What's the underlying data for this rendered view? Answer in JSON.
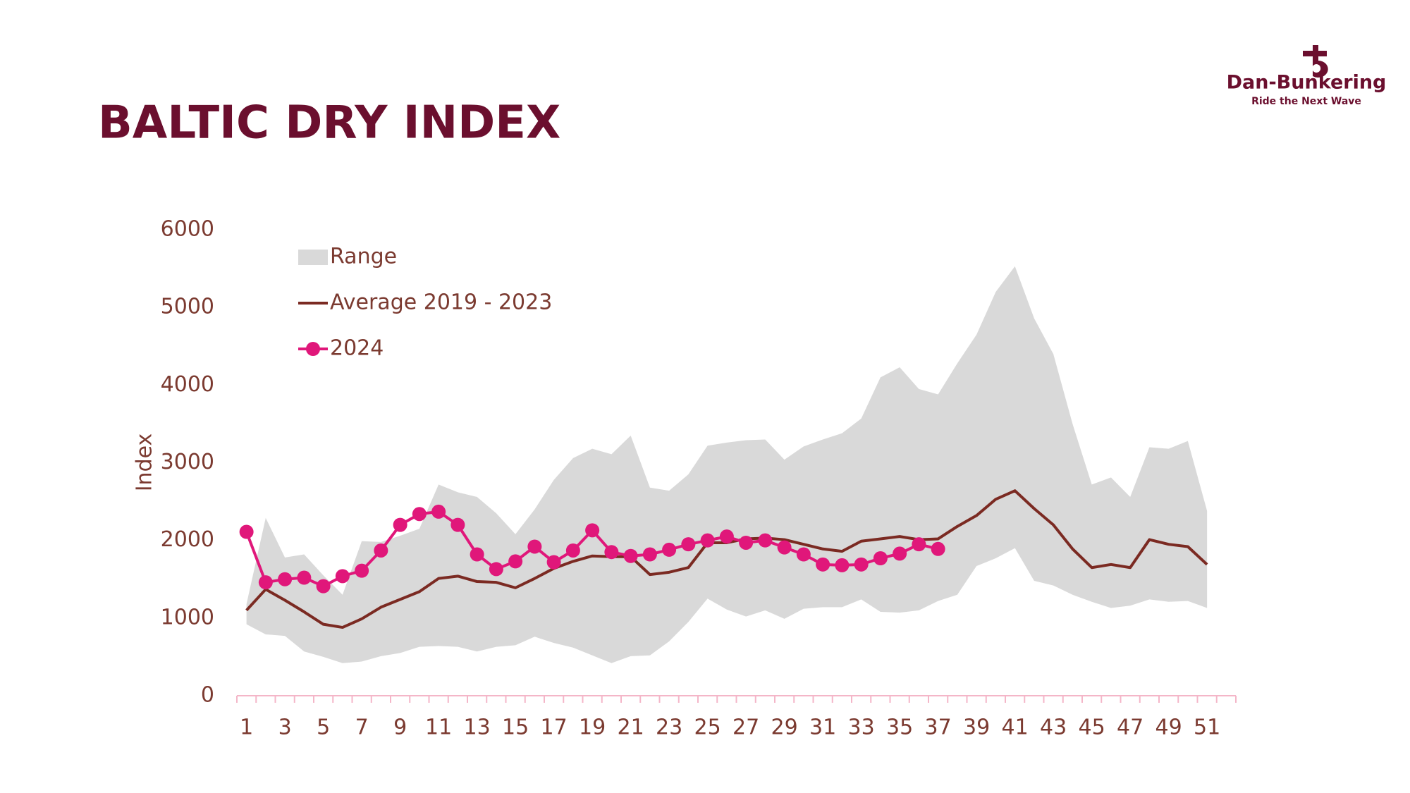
{
  "logo": {
    "name": "Dan-Bunkering",
    "tagline": "Ride the Next Wave"
  },
  "chart_data": {
    "type": "line",
    "title": "BALTIC DRY INDEX",
    "y_label": "Index",
    "categories": [
      1,
      null,
      3,
      null,
      5,
      null,
      7,
      null,
      9,
      null,
      11,
      null,
      13,
      null,
      15,
      null,
      17,
      null,
      19,
      null,
      21,
      null,
      23,
      null,
      25,
      null,
      27,
      null,
      29,
      null,
      31,
      null,
      33,
      null,
      35,
      null,
      37,
      null,
      39,
      null,
      41,
      null,
      43,
      null,
      45,
      null,
      47,
      null,
      49,
      null,
      51,
      null
    ],
    "ylim": [
      0,
      6000
    ],
    "yticks": [
      0,
      1000,
      2000,
      3000,
      4000,
      5000,
      6000
    ],
    "grid": false,
    "legend": "top-left",
    "series": [
      {
        "name": "Range",
        "color": "#d9d9d9",
        "kind": "area",
        "high": [
          1180,
          2290,
          1780,
          1820,
          1550,
          1300,
          1990,
          1980,
          2060,
          2150,
          2720,
          2620,
          2560,
          2350,
          2080,
          2400,
          2780,
          3060,
          3180,
          3110,
          3350,
          2680,
          2640,
          2850,
          3220,
          3260,
          3290,
          3300,
          3040,
          3210,
          3300,
          3380,
          3570,
          4100,
          4230,
          3950,
          3880,
          4280,
          4650,
          5200,
          5530,
          4860,
          4400,
          3500,
          2720,
          2810,
          2560,
          3200,
          3180,
          3280,
          2380,
          null
        ],
        "low": [
          920,
          790,
          770,
          570,
          500,
          420,
          440,
          510,
          550,
          630,
          640,
          630,
          570,
          630,
          650,
          760,
          680,
          620,
          520,
          420,
          510,
          520,
          700,
          950,
          1250,
          1110,
          1020,
          1100,
          990,
          1120,
          1140,
          1140,
          1240,
          1080,
          1070,
          1100,
          1220,
          1300,
          1670,
          1770,
          1900,
          1480,
          1420,
          1300,
          1210,
          1130,
          1160,
          1240,
          1210,
          1220,
          1130,
          null
        ]
      },
      {
        "name": "Average 2019 - 2023",
        "color": "#7b2a22",
        "kind": "line",
        "values": [
          1100,
          1370,
          1230,
          1080,
          920,
          880,
          990,
          1140,
          1240,
          1340,
          1510,
          1540,
          1470,
          1460,
          1390,
          1510,
          1640,
          1730,
          1800,
          1790,
          1790,
          1560,
          1590,
          1650,
          1970,
          1970,
          2020,
          2030,
          2010,
          1950,
          1890,
          1860,
          1990,
          2020,
          2050,
          2010,
          2020,
          2180,
          2320,
          2530,
          2640,
          2410,
          2200,
          1890,
          1650,
          1690,
          1650,
          2010,
          1950,
          1920,
          1690,
          null
        ]
      },
      {
        "name": "2024",
        "color": "#e0177a",
        "kind": "markers",
        "values": [
          2110,
          1460,
          1500,
          1520,
          1410,
          1540,
          1610,
          1870,
          2200,
          2340,
          2370,
          2200,
          1820,
          1630,
          1730,
          1920,
          1720,
          1870,
          2130,
          1850,
          1800,
          1820,
          1880,
          1950,
          2000,
          2050,
          1970,
          2000,
          1910,
          1820,
          1690,
          1680,
          1690,
          1770,
          1830,
          1950,
          1890,
          null,
          null,
          null,
          null,
          null,
          null,
          null,
          null,
          null,
          null,
          null,
          null,
          null,
          null,
          null
        ]
      }
    ]
  }
}
